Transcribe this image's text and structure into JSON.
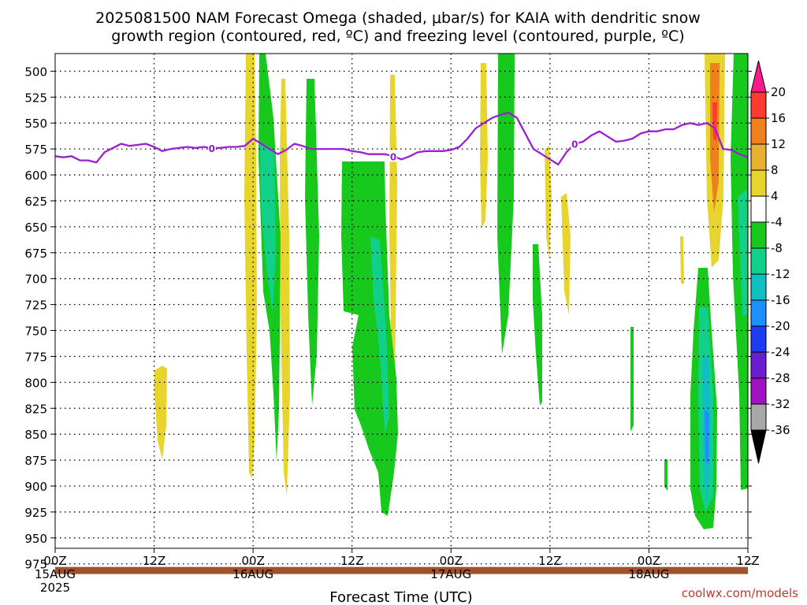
{
  "chart_data": {
    "type": "heatmap",
    "title_line1": "2025081500 NAM Forecast Omega (shaded, μbar/s) for KAIA with dendritic snow",
    "title_line2": "growth region (contoured, red, ºC) and freezing level (contoured, purple, ºC)",
    "xlabel": "Forecast Time (UTC)",
    "ylabel": "",
    "credit": "coolwx.com/models",
    "x_range_hours": [
      0,
      84
    ],
    "y_range_mb": [
      960,
      483
    ],
    "y_ticks": [
      500,
      525,
      550,
      575,
      600,
      625,
      650,
      675,
      700,
      725,
      750,
      775,
      800,
      825,
      850,
      875,
      900,
      925,
      950,
      975
    ],
    "x_ticks": [
      {
        "hour": 0,
        "label": "00Z",
        "sub": "15AUG",
        "sub2": "2025"
      },
      {
        "hour": 12,
        "label": "12Z",
        "sub": "",
        "sub2": ""
      },
      {
        "hour": 24,
        "label": "00Z",
        "sub": "16AUG",
        "sub2": ""
      },
      {
        "hour": 36,
        "label": "12Z",
        "sub": "",
        "sub2": ""
      },
      {
        "hour": 48,
        "label": "00Z",
        "sub": "17AUG",
        "sub2": ""
      },
      {
        "hour": 60,
        "label": "12Z",
        "sub": "",
        "sub2": ""
      },
      {
        "hour": 72,
        "label": "00Z",
        "sub": "18AUG",
        "sub2": ""
      },
      {
        "hour": 84,
        "label": "12Z",
        "sub": "",
        "sub2": ""
      }
    ],
    "grid": true,
    "colorbar": {
      "levels": [
        "20",
        "16",
        "12",
        "8",
        "4",
        "-4",
        "-8",
        "-12",
        "-16",
        "-20",
        "-24",
        "-28",
        "-32",
        "-36"
      ],
      "colors": [
        "#ff1a8c",
        "#ff3b30",
        "#f07f1e",
        "#e8b030",
        "#e7d52d",
        "#ffffff",
        "#16c91c",
        "#11d08a",
        "#12bfc0",
        "#1e8fff",
        "#1e3cf0",
        "#6a1ed0",
        "#a012c0",
        "#a8a8a8",
        "#000000"
      ]
    },
    "freezing_level": {
      "name": "0",
      "color": "#9c1fd1",
      "hours": [
        0,
        1,
        2,
        3,
        4,
        5,
        6,
        7,
        8,
        9,
        10,
        11,
        12,
        13,
        14,
        15,
        16,
        17,
        18,
        19,
        20,
        21,
        22,
        23,
        24,
        25,
        26,
        27,
        28,
        29,
        30,
        31,
        32,
        33,
        34,
        35,
        36,
        37,
        38,
        39,
        40,
        41,
        42,
        43,
        44,
        45,
        46,
        47,
        48,
        49,
        50,
        51,
        52,
        53,
        54,
        55,
        56,
        57,
        58,
        59,
        60,
        61,
        62,
        63,
        64,
        65,
        66,
        67,
        68,
        69,
        70,
        71,
        72,
        73,
        74,
        75,
        76,
        77,
        78,
        79,
        80,
        81,
        82,
        83,
        84
      ],
      "mb": [
        582,
        583,
        582,
        586,
        586,
        588,
        578,
        574,
        570,
        572,
        571,
        570,
        573,
        577,
        575,
        574,
        573,
        574,
        573,
        574,
        574,
        573,
        573,
        572,
        565,
        570,
        575,
        580,
        576,
        570,
        572,
        575,
        575,
        575,
        575,
        575,
        577,
        578,
        580,
        580,
        580,
        582,
        585,
        582,
        578,
        577,
        577,
        577,
        576,
        573,
        565,
        555,
        550,
        545,
        542,
        540,
        545,
        560,
        575,
        580,
        585,
        590,
        578,
        570,
        568,
        562,
        558,
        563,
        568,
        567,
        565,
        560,
        558,
        558,
        556,
        556,
        552,
        550,
        552,
        550,
        555,
        575,
        576,
        580,
        583
      ],
      "labels_at_hours": [
        19,
        41,
        63
      ]
    },
    "ground_mb": 978
  }
}
